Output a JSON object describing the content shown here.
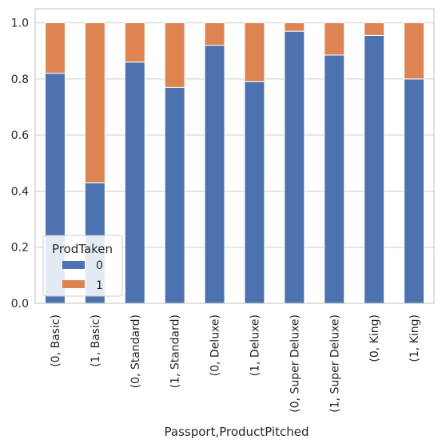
{
  "chart_data": {
    "type": "bar",
    "stacked": true,
    "xlabel": "Passport,ProductPitched",
    "ylabel": "",
    "ylim": [
      0,
      1.05
    ],
    "yticks": [
      "0.0",
      "0.2",
      "0.4",
      "0.6",
      "0.8",
      "1.0"
    ],
    "ytick_values": [
      0,
      0.2,
      0.4,
      0.6,
      0.8,
      1.0
    ],
    "categories": [
      "(0, Basic)",
      "(1, Basic)",
      "(0, Standard)",
      "(1, Standard)",
      "(0, Deluxe)",
      "(1, Deluxe)",
      "(0, Super Deluxe)",
      "(1, Super Deluxe)",
      "(0, King)",
      "(1, King)"
    ],
    "series": [
      {
        "name": "0",
        "color": "#4c72b0",
        "values": [
          0.82,
          0.43,
          0.86,
          0.77,
          0.92,
          0.79,
          0.97,
          0.885,
          0.955,
          0.8
        ]
      },
      {
        "name": "1",
        "color": "#dd8452",
        "values": [
          0.18,
          0.57,
          0.14,
          0.23,
          0.08,
          0.21,
          0.03,
          0.115,
          0.045,
          0.2
        ]
      }
    ],
    "legend": {
      "title": "ProdTaken",
      "placement": "lower-left"
    },
    "grid": true
  }
}
